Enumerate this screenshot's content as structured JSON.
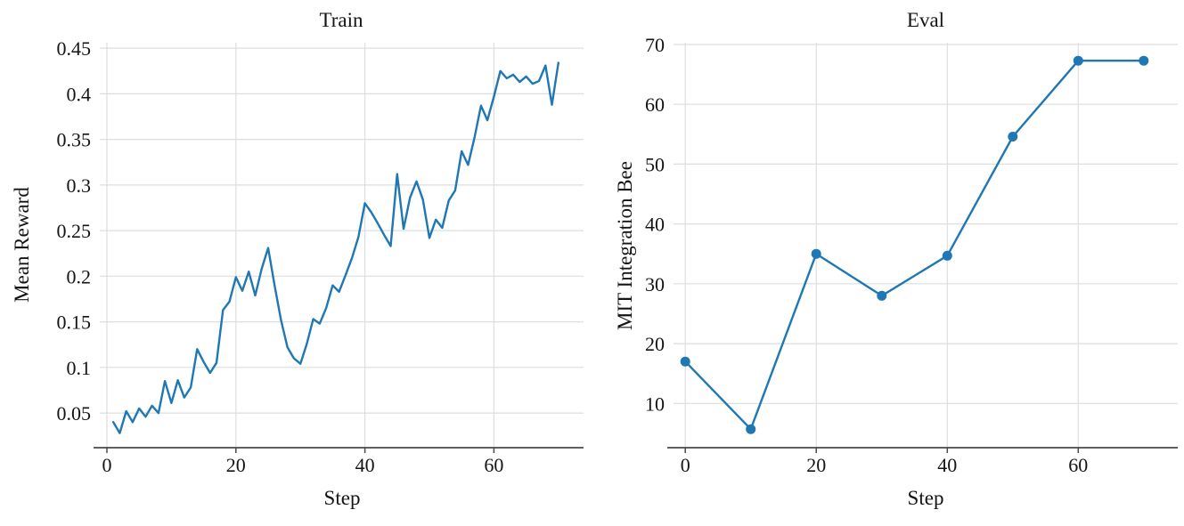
{
  "figure": {
    "background": "#ffffff"
  },
  "style": {
    "line_color": "#1f77b4",
    "grid_color": "#dedede",
    "axis_color": "#4a4a4a",
    "text_color": "#141414"
  },
  "chart_data": [
    {
      "type": "line",
      "title": "Train",
      "xlabel": "Step",
      "ylabel": "Mean Reward",
      "legend_position": "none",
      "grid": true,
      "marker": "none",
      "line_color": "#1f77b4",
      "x_ticks": [
        0,
        20,
        40,
        60
      ],
      "x_tick_labels": [
        "0",
        "20",
        "40",
        "60"
      ],
      "y_ticks": [
        0.05,
        0.1,
        0.15,
        0.2,
        0.25,
        0.3,
        0.35,
        0.4,
        0.45
      ],
      "y_tick_labels": [
        "0.05",
        "0.1",
        "0.15",
        "0.2",
        "0.25",
        "0.3",
        "0.35",
        "0.4",
        "0.45"
      ],
      "xlim": [
        -1.1,
        73.9
      ],
      "ylim": [
        0.012,
        0.456
      ],
      "x": [
        1,
        2,
        3,
        4,
        5,
        6,
        7,
        8,
        9,
        10,
        11,
        12,
        13,
        14,
        15,
        16,
        17,
        18,
        19,
        20,
        21,
        22,
        23,
        24,
        25,
        26,
        27,
        28,
        29,
        30,
        31,
        32,
        33,
        34,
        35,
        36,
        37,
        38,
        39,
        40,
        41,
        42,
        43,
        44,
        45,
        46,
        47,
        48,
        49,
        50,
        51,
        52,
        53,
        54,
        55,
        56,
        57,
        58,
        59,
        60,
        61,
        62,
        63,
        64,
        65,
        66,
        67,
        68,
        69,
        70
      ],
      "y": [
        0.04,
        0.028,
        0.052,
        0.04,
        0.055,
        0.046,
        0.058,
        0.05,
        0.085,
        0.061,
        0.086,
        0.067,
        0.078,
        0.12,
        0.106,
        0.094,
        0.105,
        0.163,
        0.172,
        0.199,
        0.184,
        0.205,
        0.179,
        0.208,
        0.231,
        0.19,
        0.152,
        0.122,
        0.11,
        0.104,
        0.126,
        0.153,
        0.148,
        0.165,
        0.19,
        0.183,
        0.201,
        0.22,
        0.243,
        0.28,
        0.27,
        0.258,
        0.245,
        0.233,
        0.312,
        0.252,
        0.286,
        0.304,
        0.284,
        0.242,
        0.262,
        0.253,
        0.283,
        0.294,
        0.337,
        0.322,
        0.352,
        0.387,
        0.371,
        0.397,
        0.425,
        0.417,
        0.421,
        0.413,
        0.419,
        0.411,
        0.414,
        0.431,
        0.388,
        0.434
      ]
    },
    {
      "type": "line",
      "title": "Eval",
      "xlabel": "Step",
      "ylabel": "MIT Integration Bee",
      "legend_position": "none",
      "grid": true,
      "marker": "circle",
      "line_color": "#1f77b4",
      "x_ticks": [
        0,
        20,
        40,
        60
      ],
      "x_tick_labels": [
        "0",
        "20",
        "40",
        "60"
      ],
      "y_ticks": [
        10,
        20,
        30,
        40,
        50,
        60,
        70
      ],
      "y_tick_labels": [
        "10",
        "20",
        "30",
        "40",
        "50",
        "60",
        "70"
      ],
      "xlim": [
        -1.8,
        75.2
      ],
      "ylim": [
        2.6,
        70.3
      ],
      "x": [
        0,
        10,
        20,
        30,
        40,
        50,
        60,
        70
      ],
      "y": [
        17,
        5.7,
        35,
        28,
        34.7,
        54.6,
        67.3,
        67.3
      ]
    }
  ]
}
